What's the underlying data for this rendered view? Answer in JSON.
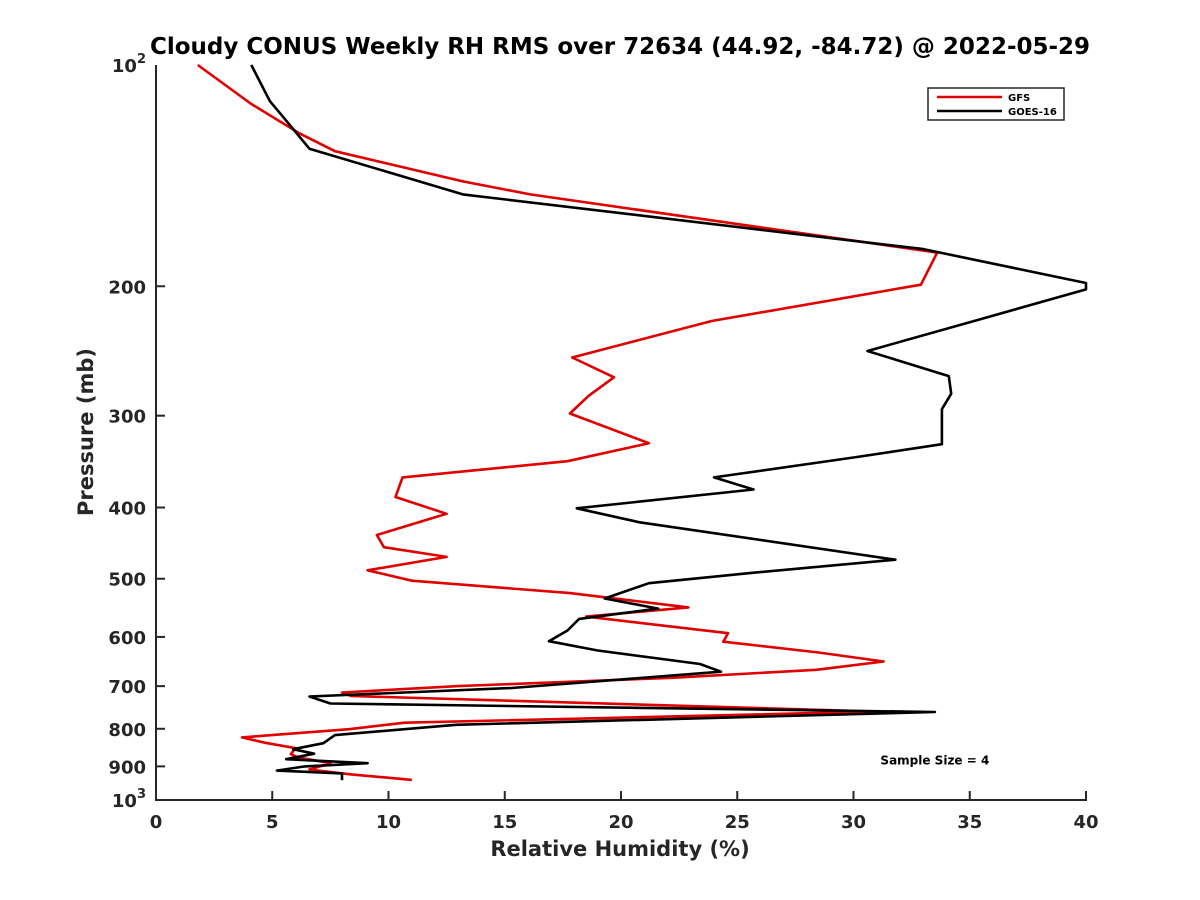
{
  "chart_data": {
    "type": "line",
    "title": "Cloudy CONUS Weekly RH RMS over 72634 (44.92, -84.72) @ 2022-05-29",
    "xlabel": "Relative Humidity (%)",
    "ylabel": "Pressure (mb)",
    "xlim": [
      0,
      40
    ],
    "ylim": [
      100,
      1000
    ],
    "y_scale": "log",
    "y_reversed": true,
    "grid": false,
    "legend_position": "top-right",
    "x_ticks": [
      0,
      5,
      10,
      15,
      20,
      25,
      30,
      35,
      40
    ],
    "y_ticks": [
      {
        "value": 100,
        "base": "10",
        "exp": "2"
      },
      {
        "value": 200,
        "label": "200"
      },
      {
        "value": 300,
        "label": "300"
      },
      {
        "value": 400,
        "label": "400"
      },
      {
        "value": 500,
        "label": "500"
      },
      {
        "value": 600,
        "label": "600"
      },
      {
        "value": 700,
        "label": "700"
      },
      {
        "value": 800,
        "label": "800"
      },
      {
        "value": 900,
        "label": "900"
      },
      {
        "value": 1000,
        "base": "10",
        "exp": "3"
      }
    ],
    "series": [
      {
        "name": "GFS",
        "color": "#e00000",
        "points": [
          [
            1.8,
            100
          ],
          [
            4.1,
            113
          ],
          [
            6.2,
            124
          ],
          [
            7.7,
            131
          ],
          [
            13.2,
            144
          ],
          [
            16.1,
            150
          ],
          [
            33.6,
            180
          ],
          [
            32.9,
            199
          ],
          [
            23.9,
            223
          ],
          [
            17.9,
            250
          ],
          [
            19.7,
            266
          ],
          [
            18.6,
            282
          ],
          [
            17.8,
            298
          ],
          [
            21.2,
            327
          ],
          [
            17.7,
            346
          ],
          [
            10.6,
            364
          ],
          [
            10.3,
            387
          ],
          [
            12.5,
            408
          ],
          [
            9.5,
            436
          ],
          [
            9.8,
            453
          ],
          [
            12.5,
            467
          ],
          [
            9.1,
            487
          ],
          [
            11.0,
            503
          ],
          [
            17.8,
            523
          ],
          [
            22.9,
            547
          ],
          [
            18.5,
            563
          ],
          [
            24.6,
            593
          ],
          [
            24.4,
            609
          ],
          [
            28.5,
            630
          ],
          [
            31.3,
            648
          ],
          [
            28.4,
            665
          ],
          [
            22.2,
            682
          ],
          [
            13.0,
            700
          ],
          [
            8.0,
            714
          ],
          [
            8.4,
            722
          ],
          [
            31.0,
            758
          ],
          [
            10.7,
            785
          ],
          [
            8.3,
            801
          ],
          [
            3.7,
            822
          ],
          [
            4.7,
            836
          ],
          [
            6.0,
            850
          ],
          [
            5.8,
            866
          ],
          [
            6.1,
            875
          ],
          [
            7.5,
            891
          ],
          [
            6.6,
            909
          ],
          [
            8.4,
            923
          ],
          [
            11.0,
            939
          ]
        ]
      },
      {
        "name": "GOES-16",
        "color": "#000000",
        "points": [
          [
            4.1,
            100
          ],
          [
            4.9,
            112
          ],
          [
            5.4,
            117
          ],
          [
            6.6,
            130
          ],
          [
            13.2,
            150
          ],
          [
            33.0,
            178
          ],
          [
            40.0,
            198
          ],
          [
            40.0,
            202
          ],
          [
            35.4,
            222
          ],
          [
            30.6,
            245
          ],
          [
            34.1,
            265
          ],
          [
            34.2,
            280
          ],
          [
            33.8,
            294
          ],
          [
            33.8,
            328
          ],
          [
            30.0,
            342
          ],
          [
            24.0,
            364
          ],
          [
            25.7,
            378
          ],
          [
            18.1,
            401
          ],
          [
            20.8,
            419
          ],
          [
            31.8,
            471
          ],
          [
            25.6,
            491
          ],
          [
            21.2,
            507
          ],
          [
            19.3,
            532
          ],
          [
            21.6,
            549
          ],
          [
            18.2,
            567
          ],
          [
            17.7,
            588
          ],
          [
            16.9,
            608
          ],
          [
            19.0,
            626
          ],
          [
            23.4,
            653
          ],
          [
            24.3,
            669
          ],
          [
            15.3,
            704
          ],
          [
            6.6,
            723
          ],
          [
            7.5,
            739
          ],
          [
            33.5,
            759
          ],
          [
            12.9,
            790
          ],
          [
            7.7,
            816
          ],
          [
            7.2,
            837
          ],
          [
            5.9,
            853
          ],
          [
            6.8,
            865
          ],
          [
            5.6,
            880
          ],
          [
            9.1,
            891
          ],
          [
            6.4,
            900
          ],
          [
            5.2,
            912
          ],
          [
            8.0,
            920
          ],
          [
            8.0,
            940
          ]
        ]
      }
    ],
    "annotations": [
      {
        "text": "Sample Size = 4",
        "x": 33.5,
        "y": 895
      }
    ]
  }
}
